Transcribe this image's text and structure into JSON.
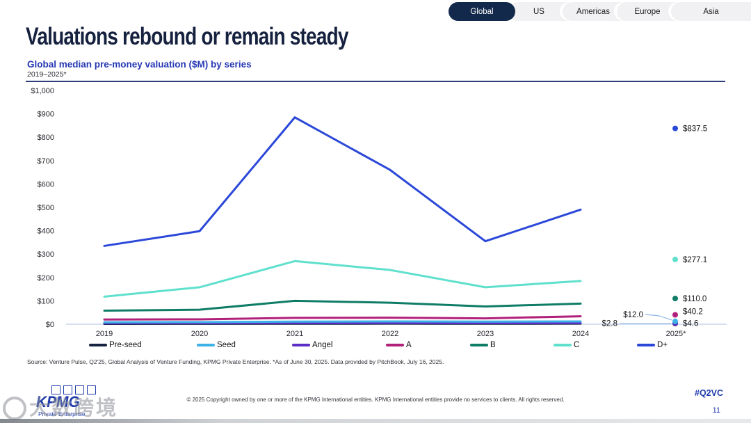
{
  "tabs": {
    "items": [
      {
        "label": "Global",
        "active": true
      },
      {
        "label": "US",
        "active": false
      },
      {
        "label": "Americas",
        "active": false
      },
      {
        "label": "Europe",
        "active": false
      },
      {
        "label": "Asia",
        "active": false
      }
    ]
  },
  "header": {
    "title": "Valuations rebound or remain steady",
    "subtitle": "Global median pre-money valuation ($M) by series",
    "period": "2019–2025*"
  },
  "chart_data": {
    "type": "line",
    "title": "Global median pre-money valuation ($M) by series",
    "subtitle": "2019–2025*",
    "categories": [
      "2019",
      "2020",
      "2021",
      "2022",
      "2023",
      "2024",
      "2025*"
    ],
    "y_tick_labels": [
      "$1,000",
      "$900",
      "$800",
      "$700",
      "$600",
      "$500",
      "$400",
      "$300",
      "$200",
      "$100",
      "$0"
    ],
    "ylim": [
      0,
      1000
    ],
    "grid": false,
    "legend_position": "bottom",
    "note": "Lines plotted 2019-2024; 2025* partial-year values shown as labeled points",
    "series": [
      {
        "name": "Pre-seed",
        "color": "#16243f",
        "values": [
          1.5,
          1.8,
          2.2,
          2.5,
          2.3,
          2.5,
          2.8
        ],
        "final_label": "$2.8",
        "label_placement": "far-left-leader"
      },
      {
        "name": "Seed",
        "color": "#3eb1e6",
        "values": [
          8,
          9,
          11,
          12,
          11,
          12,
          12.0
        ],
        "final_label": "$12.0",
        "label_placement": "left-leader"
      },
      {
        "name": "Angel",
        "color": "#5b2ec8",
        "values": [
          4,
          4.2,
          5,
          5,
          4.5,
          4.5,
          4.6
        ],
        "final_label": "$4.6",
        "label_placement": "right"
      },
      {
        "name": "A",
        "color": "#b1207a",
        "values": [
          20,
          21,
          27,
          28,
          25,
          34,
          40.2
        ],
        "final_label": "$40.2",
        "label_placement": "right-up"
      },
      {
        "name": "B",
        "color": "#0e7c66",
        "values": [
          58,
          62,
          100,
          92,
          76,
          88,
          110.0
        ],
        "final_label": "$110.0",
        "label_placement": "right"
      },
      {
        "name": "C",
        "color": "#5fe0cd",
        "values": [
          118,
          158,
          270,
          232,
          158,
          185,
          277.1
        ],
        "final_label": "$277.1",
        "label_placement": "right"
      },
      {
        "name": "D+",
        "color": "#2b48d9",
        "values": [
          335,
          398,
          885,
          660,
          355,
          490,
          837.5
        ],
        "final_label": "$837.5",
        "label_placement": "right"
      }
    ]
  },
  "source": "Source: Venture Pulse, Q2'25, Global Analysis of Venture Funding, KPMG Private Enterprise. *As of June 30, 2025. Data provided by PitchBook, July 16, 2025.",
  "footer": {
    "logo": "KPMG",
    "logo_sub": "Private Enterprise",
    "copyright": "© 2025 Copyright owned by one or more of the KPMG International entities. KPMG International entities provide no services to clients. All rights reserved.",
    "hashtag": "#Q2VC",
    "page": "11"
  },
  "watermark": "大数跨境",
  "colors": {
    "accent_blue": "#2638b4",
    "title_navy": "#15213e",
    "tab_active_bg": "#13294b",
    "axis_line": "#c9d7ec",
    "leader_line": "#8fb8e8",
    "kpmg_blue": "#1f3bac"
  }
}
